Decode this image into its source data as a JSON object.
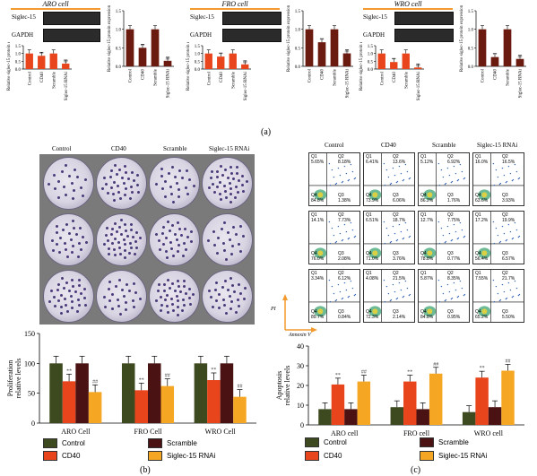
{
  "panel_a": {
    "cells": [
      {
        "title": "ARO cell",
        "band1": "Siglec-15",
        "band2": "GAPDH"
      },
      {
        "title": "FRO cell",
        "band1": "Siglec-15",
        "band2": "GAPDH"
      },
      {
        "title": "WRO cell",
        "band1": "Siglec-15",
        "band2": "GAPDH"
      }
    ],
    "label": "(a)"
  },
  "panel_b": {
    "col_labels": [
      "Control",
      "CD40",
      "Scramble",
      "Siglec-15 RNAi"
    ],
    "row_labels": [
      "ARO cell",
      "FRO cell",
      "WRO cell"
    ],
    "label": "(b)"
  },
  "panel_c": {
    "col_labels": [
      "Control",
      "CD40",
      "Scramble",
      "Siglec-15 RNAi"
    ],
    "quadrants": [
      [
        [
          "5.65%",
          "8.18%",
          "84.8%",
          "1.38%"
        ],
        [
          "6.41%",
          "13.6%",
          "73.9%",
          "6.06%"
        ],
        [
          "5.12%",
          "6.92%",
          "86.2%",
          "1.76%"
        ],
        [
          "16.0%",
          "16.5%",
          "63.6%",
          "3.93%"
        ]
      ],
      [
        [
          "14.1%",
          "7.73%",
          "76.0%",
          "2.08%"
        ],
        [
          "6.51%",
          "18.7%",
          "71.0%",
          "3.76%"
        ],
        [
          "12.7%",
          "7.75%",
          "78.8%",
          "0.77%"
        ],
        [
          "17.2%",
          "19.9%",
          "56.4%",
          "6.57%"
        ]
      ],
      [
        [
          "3.34%",
          "6.12%",
          "89.7%",
          "0.84%"
        ],
        [
          "4.08%",
          "21.5%",
          "72.3%",
          "2.14%"
        ],
        [
          "5.87%",
          "8.35%",
          "84.8%",
          "0.95%"
        ],
        [
          "7.55%",
          "21.7%",
          "65.2%",
          "5.50%"
        ]
      ]
    ],
    "axis_pi": "PI",
    "axis_annexin": "Annexin V",
    "label": "(c)"
  },
  "legend": {
    "control": "Control",
    "scramble": "Scramble",
    "cd40": "CD40",
    "rnai": "Siglec-15 RNAi"
  },
  "colors": {
    "control": "#3d4a1f",
    "cd40": "#e8451c",
    "scramble": "#4a1212",
    "rnai": "#f5a623",
    "brown": "#6b1a10",
    "orange": "#f29a2e"
  },
  "chart_data": [
    {
      "type": "bar",
      "id": "a-aro-left",
      "categories": [
        "Control",
        "CD40",
        "Scramble",
        "Siglec-15 RNAi"
      ],
      "values": [
        1.0,
        0.85,
        1.0,
        0.35
      ],
      "annotations": [
        "",
        "**",
        "",
        "##"
      ],
      "ylabel": "Relative siglec-15 protein expression",
      "ylim": [
        0,
        1.5
      ],
      "yticks": [
        0,
        0.5,
        1.0,
        1.5
      ]
    },
    {
      "type": "bar",
      "id": "a-aro-right",
      "categories": [
        "Control",
        "CD40",
        "Scramble",
        "Siglec-15 RNAi"
      ],
      "values": [
        1.0,
        0.5,
        1.0,
        0.15
      ],
      "annotations": [
        "",
        "**",
        "",
        "##"
      ],
      "ylabel": "Relative siglec-15 protein expression",
      "ylim": [
        0,
        1.5
      ],
      "yticks": [
        0,
        0.5,
        1.0,
        1.5
      ]
    },
    {
      "type": "bar",
      "id": "a-fro-left",
      "categories": [
        "Control",
        "CD40",
        "Scramble",
        "Siglec-15 RNAi"
      ],
      "values": [
        1.0,
        0.8,
        1.0,
        0.3
      ],
      "annotations": [
        "",
        "**",
        "",
        "##"
      ],
      "ylabel": "Relative siglec-15 protein expression",
      "ylim": [
        0,
        1.5
      ],
      "yticks": [
        0,
        0.5,
        1.0,
        1.5
      ]
    },
    {
      "type": "bar",
      "id": "a-fro-right",
      "categories": [
        "Control",
        "CD40",
        "Scramble",
        "Siglec-15 RNAi"
      ],
      "values": [
        1.0,
        0.65,
        1.0,
        0.35
      ],
      "annotations": [
        "",
        "**",
        "",
        "##"
      ],
      "ylabel": "Relative siglec-15 protein expression",
      "ylim": [
        0,
        1.5
      ],
      "yticks": [
        0,
        0.5,
        1.0,
        1.5
      ]
    },
    {
      "type": "bar",
      "id": "a-wro-left",
      "categories": [
        "Control",
        "CD40",
        "Scramble",
        "Siglec-15 RNAi"
      ],
      "values": [
        1.0,
        0.45,
        1.0,
        0.1
      ],
      "annotations": [
        "",
        "**",
        "",
        "##"
      ],
      "ylabel": "Relative siglec-15 protein expression",
      "ylim": [
        0,
        1.5
      ],
      "yticks": [
        0,
        0.5,
        1.0,
        1.5
      ]
    },
    {
      "type": "bar",
      "id": "a-wro-right",
      "categories": [
        "Control",
        "CD40",
        "Scramble",
        "Siglec-15 RNAi"
      ],
      "values": [
        1.0,
        0.25,
        1.0,
        0.2
      ],
      "annotations": [
        "",
        "**",
        "",
        "##"
      ],
      "ylabel": "Relative siglec-15 protein expression",
      "ylim": [
        0,
        1.5
      ],
      "yticks": [
        0,
        0.5,
        1.0,
        1.5
      ]
    },
    {
      "type": "bar",
      "id": "b-proliferation",
      "categories": [
        "ARO Cell",
        "FRO Cell",
        "WRO Cell"
      ],
      "series": [
        {
          "name": "Control",
          "values": [
            100,
            100,
            100
          ]
        },
        {
          "name": "CD40",
          "values": [
            70,
            55,
            72
          ]
        },
        {
          "name": "Scramble",
          "values": [
            100,
            100,
            100
          ]
        },
        {
          "name": "Siglec-15 RNAi",
          "values": [
            52,
            62,
            44
          ]
        }
      ],
      "annotations": [
        [
          "",
          "**",
          "",
          "##"
        ],
        [
          "",
          "**",
          "",
          "##"
        ],
        [
          "",
          "**",
          "",
          "##"
        ]
      ],
      "ylabel": "Proliferation relative levels",
      "ylim": [
        0,
        150
      ],
      "yticks": [
        0,
        50,
        100,
        150
      ]
    },
    {
      "type": "bar",
      "id": "c-apoptosis",
      "categories": [
        "ARO cell",
        "FRO cell",
        "WRO cell"
      ],
      "series": [
        {
          "name": "Control",
          "values": [
            8,
            9,
            6.5
          ]
        },
        {
          "name": "CD40",
          "values": [
            20.5,
            22,
            24
          ]
        },
        {
          "name": "Scramble",
          "values": [
            8,
            8,
            9
          ]
        },
        {
          "name": "Siglec-15 RNAi",
          "values": [
            22,
            26,
            27.5
          ]
        }
      ],
      "annotations": [
        [
          "",
          "**",
          "",
          "##"
        ],
        [
          "",
          "**",
          "",
          "##"
        ],
        [
          "",
          "**",
          "",
          "##"
        ]
      ],
      "ylabel": "Apoptosis relative levels",
      "ylim": [
        0,
        40
      ],
      "yticks": [
        0,
        10,
        20,
        30,
        40
      ]
    }
  ]
}
